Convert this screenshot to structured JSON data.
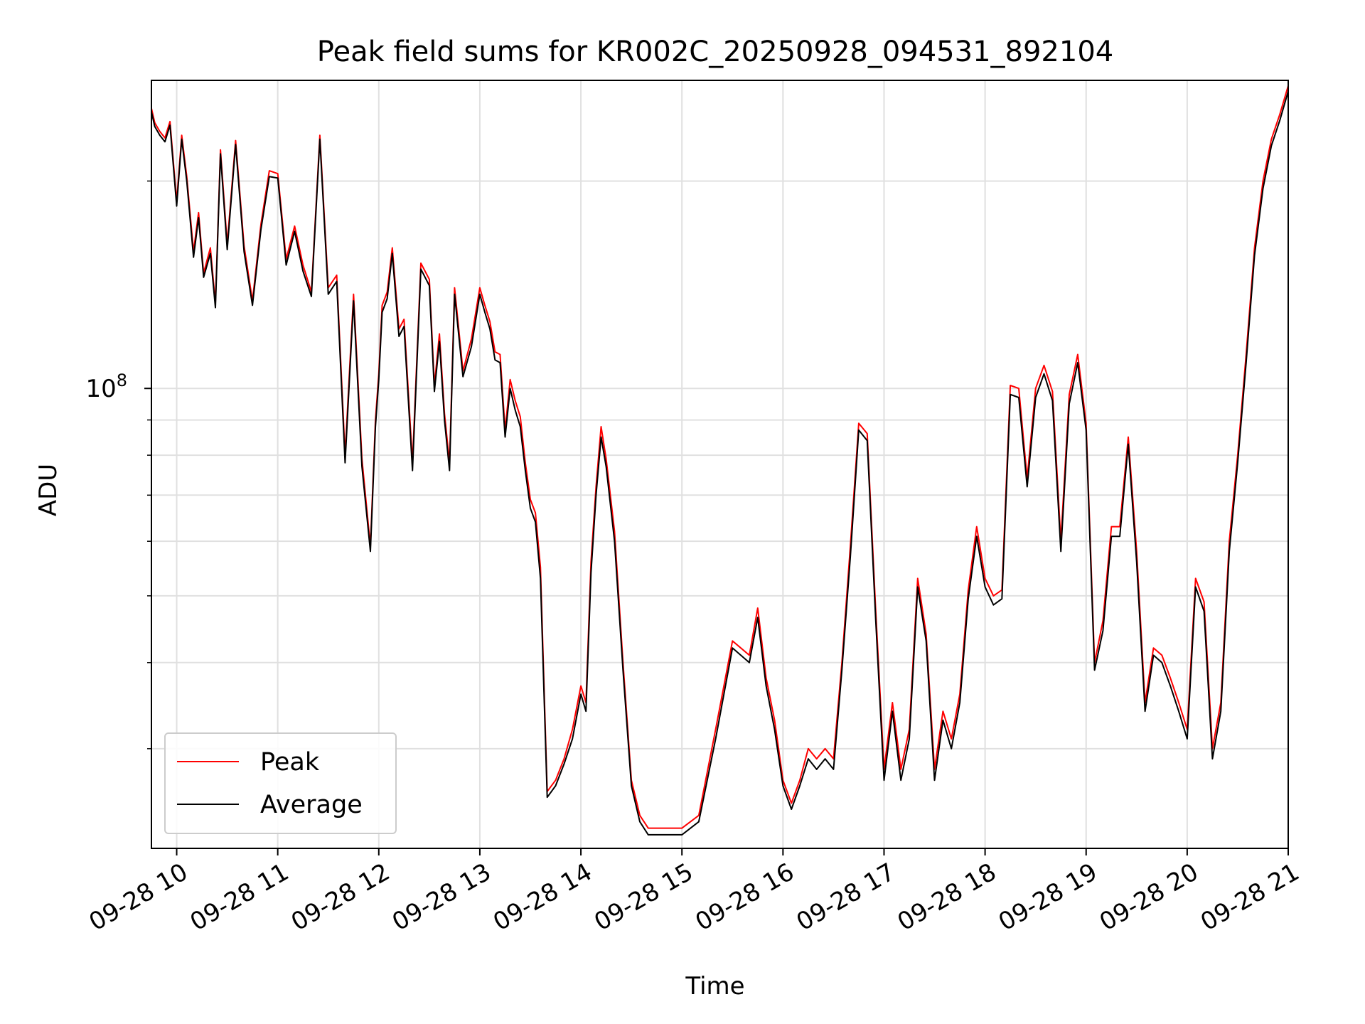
{
  "chart_data": {
    "type": "line",
    "title": "Peak field sums for KR002C_20250928_094531_892104",
    "xlabel": "Time",
    "ylabel": "ADU",
    "y_scale": "log",
    "grid": true,
    "legend_placement": "lower-left",
    "x_ticks": [
      "09-28 10",
      "09-28 11",
      "09-28 12",
      "09-28 13",
      "09-28 14",
      "09-28 15",
      "09-28 16",
      "09-28 17",
      "09-28 18",
      "09-28 19",
      "09-28 20",
      "09-28 21"
    ],
    "y_ticks": [
      {
        "label_base": "10",
        "label_exp": "8",
        "value": 100000000
      }
    ],
    "x_range": [
      "2025-09-28 09:45",
      "2025-09-28 21:00"
    ],
    "ylim": [
      21500000,
      280000000
    ],
    "colors": {
      "Peak": "#ff0000",
      "Average": "#000000",
      "grid": "#e0e0e0"
    },
    "x_times": [
      "2025-09-28 09:45",
      "2025-09-28 09:47",
      "2025-09-28 09:50",
      "2025-09-28 09:53",
      "2025-09-28 09:56",
      "2025-09-28 10:00",
      "2025-09-28 10:03",
      "2025-09-28 10:06",
      "2025-09-28 10:10",
      "2025-09-28 10:13",
      "2025-09-28 10:16",
      "2025-09-28 10:20",
      "2025-09-28 10:23",
      "2025-09-28 10:26",
      "2025-09-28 10:30",
      "2025-09-28 10:35",
      "2025-09-28 10:40",
      "2025-09-28 10:45",
      "2025-09-28 10:50",
      "2025-09-28 10:55",
      "2025-09-28 11:00",
      "2025-09-28 11:05",
      "2025-09-28 11:10",
      "2025-09-28 11:15",
      "2025-09-28 11:20",
      "2025-09-28 11:25",
      "2025-09-28 11:30",
      "2025-09-28 11:35",
      "2025-09-28 11:40",
      "2025-09-28 11:45",
      "2025-09-28 11:50",
      "2025-09-28 11:55",
      "2025-09-28 11:58",
      "2025-09-28 12:00",
      "2025-09-28 12:02",
      "2025-09-28 12:05",
      "2025-09-28 12:08",
      "2025-09-28 12:12",
      "2025-09-28 12:15",
      "2025-09-28 12:20",
      "2025-09-28 12:25",
      "2025-09-28 12:30",
      "2025-09-28 12:33",
      "2025-09-28 12:36",
      "2025-09-28 12:39",
      "2025-09-28 12:42",
      "2025-09-28 12:45",
      "2025-09-28 12:50",
      "2025-09-28 12:55",
      "2025-09-28 13:00",
      "2025-09-28 13:03",
      "2025-09-28 13:06",
      "2025-09-28 13:09",
      "2025-09-28 13:12",
      "2025-09-28 13:15",
      "2025-09-28 13:18",
      "2025-09-28 13:21",
      "2025-09-28 13:24",
      "2025-09-28 13:27",
      "2025-09-28 13:30",
      "2025-09-28 13:33",
      "2025-09-28 13:36",
      "2025-09-28 13:40",
      "2025-09-28 13:45",
      "2025-09-28 13:50",
      "2025-09-28 13:55",
      "2025-09-28 14:00",
      "2025-09-28 14:03",
      "2025-09-28 14:06",
      "2025-09-28 14:09",
      "2025-09-28 14:12",
      "2025-09-28 14:15",
      "2025-09-28 14:20",
      "2025-09-28 14:25",
      "2025-09-28 14:30",
      "2025-09-28 14:35",
      "2025-09-28 14:40",
      "2025-09-28 14:50",
      "2025-09-28 15:00",
      "2025-09-28 15:10",
      "2025-09-28 15:20",
      "2025-09-28 15:30",
      "2025-09-28 15:40",
      "2025-09-28 15:45",
      "2025-09-28 15:50",
      "2025-09-28 15:55",
      "2025-09-28 16:00",
      "2025-09-28 16:05",
      "2025-09-28 16:10",
      "2025-09-28 16:15",
      "2025-09-28 16:20",
      "2025-09-28 16:25",
      "2025-09-28 16:30",
      "2025-09-28 16:35",
      "2025-09-28 16:40",
      "2025-09-28 16:45",
      "2025-09-28 16:50",
      "2025-09-28 16:55",
      "2025-09-28 17:00",
      "2025-09-28 17:05",
      "2025-09-28 17:10",
      "2025-09-28 17:15",
      "2025-09-28 17:20",
      "2025-09-28 17:25",
      "2025-09-28 17:30",
      "2025-09-28 17:35",
      "2025-09-28 17:40",
      "2025-09-28 17:45",
      "2025-09-28 17:50",
      "2025-09-28 17:55",
      "2025-09-28 18:00",
      "2025-09-28 18:05",
      "2025-09-28 18:10",
      "2025-09-28 18:15",
      "2025-09-28 18:20",
      "2025-09-28 18:25",
      "2025-09-28 18:30",
      "2025-09-28 18:35",
      "2025-09-28 18:40",
      "2025-09-28 18:45",
      "2025-09-28 18:50",
      "2025-09-28 18:55",
      "2025-09-28 19:00",
      "2025-09-28 19:05",
      "2025-09-28 19:10",
      "2025-09-28 19:15",
      "2025-09-28 19:20",
      "2025-09-28 19:25",
      "2025-09-28 19:30",
      "2025-09-28 19:35",
      "2025-09-28 19:40",
      "2025-09-28 19:45",
      "2025-09-28 19:50",
      "2025-09-28 19:55",
      "2025-09-28 20:00",
      "2025-09-28 20:05",
      "2025-09-28 20:10",
      "2025-09-28 20:15",
      "2025-09-28 20:20",
      "2025-09-28 20:25",
      "2025-09-28 20:30",
      "2025-09-28 20:35",
      "2025-09-28 20:40",
      "2025-09-28 20:45",
      "2025-09-28 20:50",
      "2025-09-28 20:55",
      "2025-09-28 21:00"
    ],
    "series": [
      {
        "name": "Peak",
        "values": [
          255000000,
          243000000,
          236000000,
          231000000,
          244000000,
          187000000,
          233000000,
          203000000,
          158000000,
          180000000,
          147000000,
          160000000,
          133000000,
          222000000,
          162000000,
          229000000,
          161000000,
          134000000,
          173000000,
          207000000,
          205000000,
          154000000,
          172000000,
          151000000,
          138000000,
          233000000,
          140000000,
          146000000,
          80000000,
          137000000,
          79000000,
          59000000,
          90000000,
          105000000,
          132000000,
          138000000,
          160000000,
          122000000,
          126000000,
          78000000,
          152000000,
          144000000,
          101000000,
          120000000,
          92000000,
          78000000,
          140000000,
          106000000,
          118000000,
          140000000,
          132000000,
          125000000,
          113000000,
          112000000,
          87000000,
          103000000,
          96000000,
          91000000,
          78000000,
          69000000,
          66000000,
          55000000,
          26000000,
          27000000,
          29000000,
          32000000,
          37000000,
          35000000,
          56000000,
          72000000,
          88000000,
          79000000,
          62000000,
          40000000,
          27000000,
          24000000,
          23000000,
          23000000,
          23000000,
          24000000,
          32000000,
          43000000,
          41000000,
          48000000,
          38000000,
          33000000,
          27000000,
          25000000,
          27000000,
          30000000,
          29000000,
          30000000,
          29000000,
          40000000,
          59000000,
          89000000,
          86000000,
          48000000,
          28000000,
          35000000,
          28000000,
          32000000,
          53000000,
          44000000,
          28000000,
          34000000,
          31000000,
          36000000,
          51000000,
          63000000,
          53000000,
          50000000,
          51000000,
          101000000,
          100000000,
          74000000,
          100000000,
          108000000,
          99000000,
          60000000,
          98000000,
          112000000,
          89000000,
          40000000,
          46000000,
          63000000,
          63000000,
          85000000,
          58000000,
          35000000,
          42000000,
          41000000,
          38000000,
          35000000,
          32000000,
          53000000,
          49000000,
          30000000,
          35000000,
          60000000,
          80000000,
          112000000,
          160000000,
          200000000,
          230000000,
          250000000,
          275000000
        ]
      },
      {
        "name": "Average",
        "values": [
          252000000,
          240000000,
          233000000,
          228000000,
          241000000,
          184000000,
          230000000,
          200000000,
          155000000,
          177000000,
          145000000,
          157000000,
          131000000,
          219000000,
          159000000,
          226000000,
          158000000,
          132000000,
          170000000,
          203000000,
          202000000,
          151000000,
          169000000,
          148000000,
          136000000,
          230000000,
          137000000,
          143000000,
          78000000,
          134000000,
          77000000,
          58000000,
          88000000,
          103000000,
          129000000,
          135000000,
          157000000,
          119000000,
          123000000,
          76000000,
          149000000,
          141000000,
          99000000,
          117000000,
          90000000,
          76000000,
          137000000,
          104000000,
          115000000,
          137000000,
          129000000,
          122000000,
          110000000,
          109000000,
          85000000,
          100000000,
          93000000,
          88000000,
          76000000,
          67000000,
          64000000,
          53000000,
          25500000,
          26500000,
          28500000,
          31000000,
          36000000,
          34000000,
          54000000,
          70000000,
          85000000,
          77000000,
          60000000,
          39000000,
          26500000,
          23500000,
          22500000,
          22500000,
          22500000,
          23500000,
          31000000,
          42000000,
          40000000,
          46500000,
          37000000,
          32000000,
          26500000,
          24500000,
          26500000,
          29000000,
          28000000,
          29000000,
          28000000,
          39000000,
          57000000,
          87000000,
          84000000,
          46500000,
          27000000,
          34000000,
          27000000,
          31000000,
          51500000,
          43000000,
          27000000,
          33000000,
          30000000,
          35000000,
          49500000,
          61000000,
          51500000,
          48500000,
          49500000,
          98000000,
          97000000,
          72000000,
          97000000,
          105000000,
          96000000,
          58000000,
          95000000,
          109000000,
          87000000,
          39000000,
          44500000,
          61000000,
          61000000,
          83000000,
          56000000,
          34000000,
          41000000,
          40000000,
          37000000,
          34000000,
          31000000,
          51500000,
          47500000,
          29000000,
          34000000,
          58000000,
          78000000,
          109000000,
          156000000,
          195000000,
          225000000,
          245000000,
          270000000
        ]
      }
    ]
  }
}
